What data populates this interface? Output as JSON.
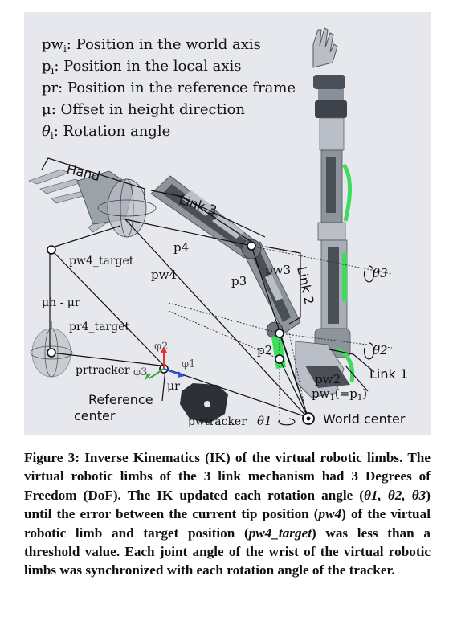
{
  "legend": {
    "line1_main": "pw",
    "line1_sub": "i",
    "line1_rest": ": Position in the world axis",
    "line2_main": "p",
    "line2_sub": "i",
    "line2_rest": ": Position in the local axis",
    "line3": "pr: Position in the reference frame",
    "line4": "μ: Offset in height direction",
    "line5_main": "θ",
    "line5_sub": "i",
    "line5_rest": ": Rotation angle"
  },
  "labels": {
    "hand": "Hand",
    "link3": "Link 3",
    "link2": "Link 2",
    "link1": "Link 1",
    "p4": "p4",
    "pw4": "pw4",
    "p3": "p3",
    "pw3": "pw3",
    "p2": "p2",
    "pw2": "pw2",
    "pw1_main": "pw",
    "pw1_sub": "1",
    "pw1_rest": "(=p",
    "pw1_sub2": "1",
    "pw1_end": ")",
    "theta1": "θ1",
    "theta2": "θ2",
    "theta3": "θ3",
    "pw4_target": "pw4_target",
    "pr4_target": "pr4_target",
    "pr_tracker": "prtracker",
    "pw_tracker": "pwtracker",
    "mu_h_minus_mu_r": "μh - μr",
    "mu_r": "μr",
    "phi1": "φ1",
    "phi2": "φ2",
    "phi3": "φ3",
    "reference_center_line1": "Reference",
    "reference_center_line2": "center",
    "world_center": "World center"
  },
  "caption": {
    "part1": "Figure 3: Inverse Kinematics (IK) of the virtual robotic limbs. The virtual robotic limbs of the 3 link mechanism had 3 Degrees of Freedom (DoF). The IK updated each rotation angle (",
    "angles": "θ1, θ2, θ3",
    "part2": ") until the error between the current tip position (",
    "pw4": "pw4",
    "part3": ") of the virtual robotic limb and target position (",
    "pw4_target": "pw4_target",
    "part4": ") was less than a threshold value. Each joint angle of the wrist of the virtual robotic limbs was synchronized with each rotation angle of the tracker."
  },
  "colors": {
    "background_panel": "#e6e8ee",
    "robot_dark": "#4a4f58",
    "robot_light": "#b9bec7",
    "accent_green": "#3ddc5a",
    "axis_red": "#e0342c",
    "axis_blue": "#2a56e0",
    "axis_green": "#3aa84a"
  }
}
